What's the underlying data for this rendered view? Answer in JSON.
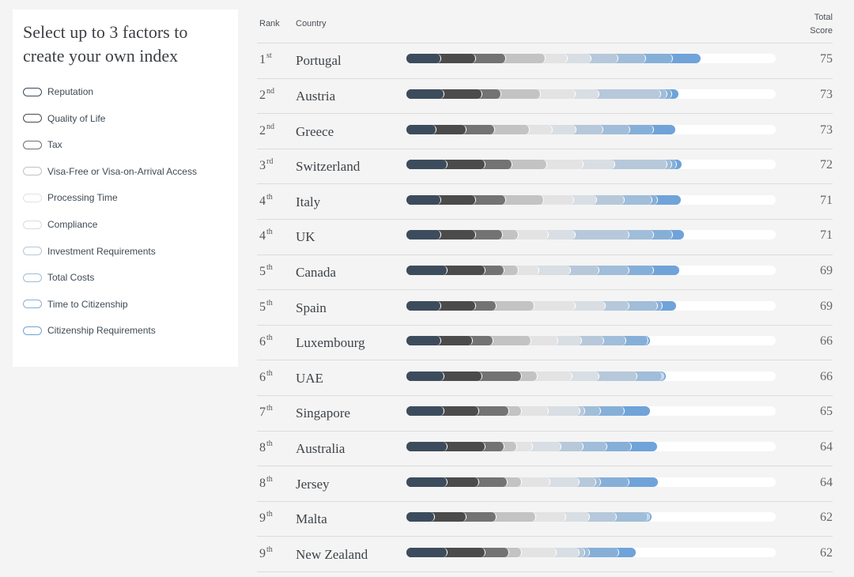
{
  "panel": {
    "title": "Select up to 3 factors to create your own index",
    "factors": [
      {
        "label": "Reputation",
        "color": "#3b4a5a"
      },
      {
        "label": "Quality of Life",
        "color": "#4a4a4a"
      },
      {
        "label": "Tax",
        "color": "#6f6f6f"
      },
      {
        "label": "Visa-Free or Visa-on-Arrival Access",
        "color": "#c2c2c2"
      },
      {
        "label": "Processing Time",
        "color": "#e2e2e2"
      },
      {
        "label": "Compliance",
        "color": "#d6dce2"
      },
      {
        "label": "Investment Requirements",
        "color": "#b5c7d8"
      },
      {
        "label": "Total Costs",
        "color": "#9fbcd8"
      },
      {
        "label": "Time to Citizenship",
        "color": "#86afd6"
      },
      {
        "label": "Citizenship Requirements",
        "color": "#6fa3d9"
      }
    ]
  },
  "table": {
    "header_rank": "Rank",
    "header_country": "Country",
    "header_score_line1": "Total",
    "header_score_line2": "Score"
  },
  "chart_data": {
    "type": "bar",
    "stacked": true,
    "max_value": 100,
    "segment_colors": [
      "#3d4c5c",
      "#4b4b4b",
      "#737373",
      "#c3c3c3",
      "#e3e3e3",
      "#d8dee4",
      "#b6c8da",
      "#a0bdd9",
      "#86afd8",
      "#6fa3d9"
    ],
    "series": [
      "Reputation",
      "Quality of Life",
      "Tax",
      "Visa-Free or Visa-on-Arrival Access",
      "Processing Time",
      "Compliance",
      "Investment Requirements",
      "Total Costs",
      "Time to Citizenship",
      "Citizenship Requirements"
    ],
    "rows": [
      {
        "rank": "1",
        "suffix": "st",
        "country": "Portugal",
        "score": 75,
        "segments": [
          9.4,
          9.4,
          8.1,
          10.7,
          6.0,
          6.4,
          7.3,
          7.5,
          7.3,
          7.5
        ]
      },
      {
        "rank": "2",
        "suffix": "nd",
        "country": "Austria",
        "score": 73,
        "segments": [
          10.3,
          10.3,
          5.1,
          10.7,
          9.4,
          6.4,
          16.7,
          1.7,
          1.3,
          1.7
        ]
      },
      {
        "rank": "2",
        "suffix": "nd",
        "country": "Greece",
        "score": 73,
        "segments": [
          8.1,
          8.1,
          7.7,
          9.4,
          6.4,
          6.4,
          7.3,
          7.3,
          6.4,
          5.6
        ]
      },
      {
        "rank": "3",
        "suffix": "rd",
        "country": "Switzerland",
        "score": 72,
        "segments": [
          11.1,
          10.3,
          7.3,
          9.4,
          9.8,
          8.6,
          14.1,
          1.3,
          1.3,
          1.3
        ]
      },
      {
        "rank": "4",
        "suffix": "th",
        "country": "Italy",
        "score": 71,
        "segments": [
          9.4,
          9.4,
          8.1,
          10.3,
          8.1,
          6.4,
          7.3,
          7.7,
          1.3,
          6.4
        ]
      },
      {
        "rank": "4",
        "suffix": "th",
        "country": "UK",
        "score": 71,
        "segments": [
          9.4,
          9.4,
          7.3,
          4.3,
          8.1,
          7.3,
          14.5,
          6.8,
          5.1,
          3.0
        ]
      },
      {
        "rank": "5",
        "suffix": "th",
        "country": "Canada",
        "score": 69,
        "segments": [
          11.1,
          10.3,
          5.1,
          3.8,
          5.6,
          8.6,
          7.7,
          8.1,
          6.8,
          6.8
        ]
      },
      {
        "rank": "5",
        "suffix": "th",
        "country": "Spain",
        "score": 69,
        "segments": [
          9.4,
          9.4,
          5.6,
          10.3,
          11.1,
          8.1,
          6.4,
          7.7,
          1.3,
          3.8
        ]
      },
      {
        "rank": "6",
        "suffix": "th",
        "country": "Luxembourg",
        "score": 66,
        "segments": [
          9.4,
          8.6,
          5.6,
          10.3,
          7.3,
          6.4,
          6.0,
          6.0,
          6.0,
          0.4
        ]
      },
      {
        "rank": "6",
        "suffix": "th",
        "country": "UAE",
        "score": 66,
        "segments": [
          10.3,
          10.3,
          10.7,
          4.3,
          9.4,
          7.3,
          10.3,
          6.8,
          0.4,
          0.4
        ]
      },
      {
        "rank": "7",
        "suffix": "th",
        "country": "Singapore",
        "score": 65,
        "segments": [
          10.3,
          9.4,
          8.1,
          3.4,
          7.3,
          8.6,
          1.3,
          4.3,
          6.4,
          6.8
        ]
      },
      {
        "rank": "8",
        "suffix": "th",
        "country": "Australia",
        "score": 64,
        "segments": [
          11.1,
          10.3,
          5.1,
          3.4,
          4.3,
          7.7,
          6.0,
          6.4,
          6.8,
          6.8
        ]
      },
      {
        "rank": "8",
        "suffix": "th",
        "country": "Jersey",
        "score": 64,
        "segments": [
          11.1,
          8.6,
          7.7,
          3.8,
          7.7,
          8.1,
          4.3,
          1.3,
          7.7,
          7.7
        ]
      },
      {
        "rank": "9",
        "suffix": "th",
        "country": "Malta",
        "score": 62,
        "segments": [
          7.7,
          8.6,
          8.1,
          10.7,
          8.1,
          6.4,
          7.3,
          8.6,
          0.4,
          0.4
        ]
      },
      {
        "rank": "9",
        "suffix": "th",
        "country": "New Zealand",
        "score": 62,
        "segments": [
          11.1,
          10.3,
          6.4,
          3.4,
          9.4,
          6.4,
          1.3,
          1.3,
          8.1,
          4.3
        ]
      }
    ]
  }
}
